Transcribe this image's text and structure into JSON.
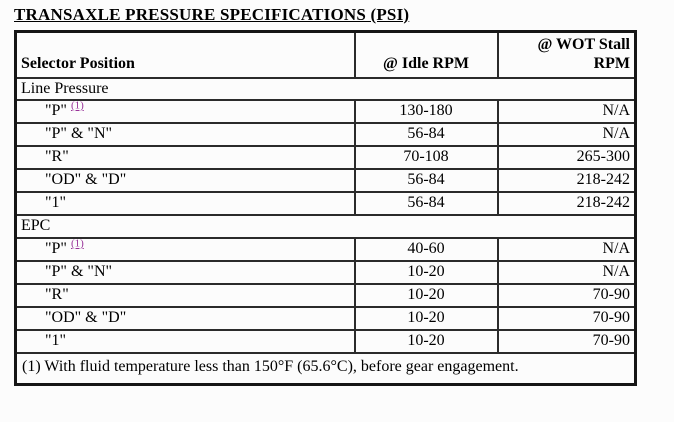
{
  "title": "TRANSAXLE PRESSURE SPECIFICATIONS (PSI)",
  "table": {
    "columns": [
      "Selector Position",
      "@ Idle RPM",
      "@ WOT Stall RPM"
    ],
    "sections": [
      {
        "name": "Line Pressure",
        "rows": [
          {
            "position": "\"P\"",
            "footnote_ref": "(1)",
            "idle_rpm": "130-180",
            "wot_stall_rpm": "N/A"
          },
          {
            "position": "\"P\" & \"N\"",
            "idle_rpm": "56-84",
            "wot_stall_rpm": "N/A"
          },
          {
            "position": "\"R\"",
            "idle_rpm": "70-108",
            "wot_stall_rpm": "265-300"
          },
          {
            "position": "\"OD\" & \"D\"",
            "idle_rpm": "56-84",
            "wot_stall_rpm": "218-242"
          },
          {
            "position": "\"1\"",
            "idle_rpm": "56-84",
            "wot_stall_rpm": "218-242"
          }
        ]
      },
      {
        "name": "EPC",
        "rows": [
          {
            "position": "\"P\"",
            "footnote_ref": "(1)",
            "idle_rpm": "40-60",
            "wot_stall_rpm": "N/A"
          },
          {
            "position": "\"P\" & \"N\"",
            "idle_rpm": "10-20",
            "wot_stall_rpm": "N/A"
          },
          {
            "position": "\"R\"",
            "idle_rpm": "10-20",
            "wot_stall_rpm": "70-90"
          },
          {
            "position": "\"OD\" & \"D\"",
            "idle_rpm": "10-20",
            "wot_stall_rpm": "70-90"
          },
          {
            "position": "\"1\"",
            "idle_rpm": "10-20",
            "wot_stall_rpm": "70-90"
          }
        ]
      }
    ],
    "footnote": "(1) With fluid temperature less than 150°F (65.6°C), before gear engagement.",
    "colors": {
      "text": "#000000",
      "border": "#2b2b2b",
      "footnote_link": "#993399"
    }
  }
}
